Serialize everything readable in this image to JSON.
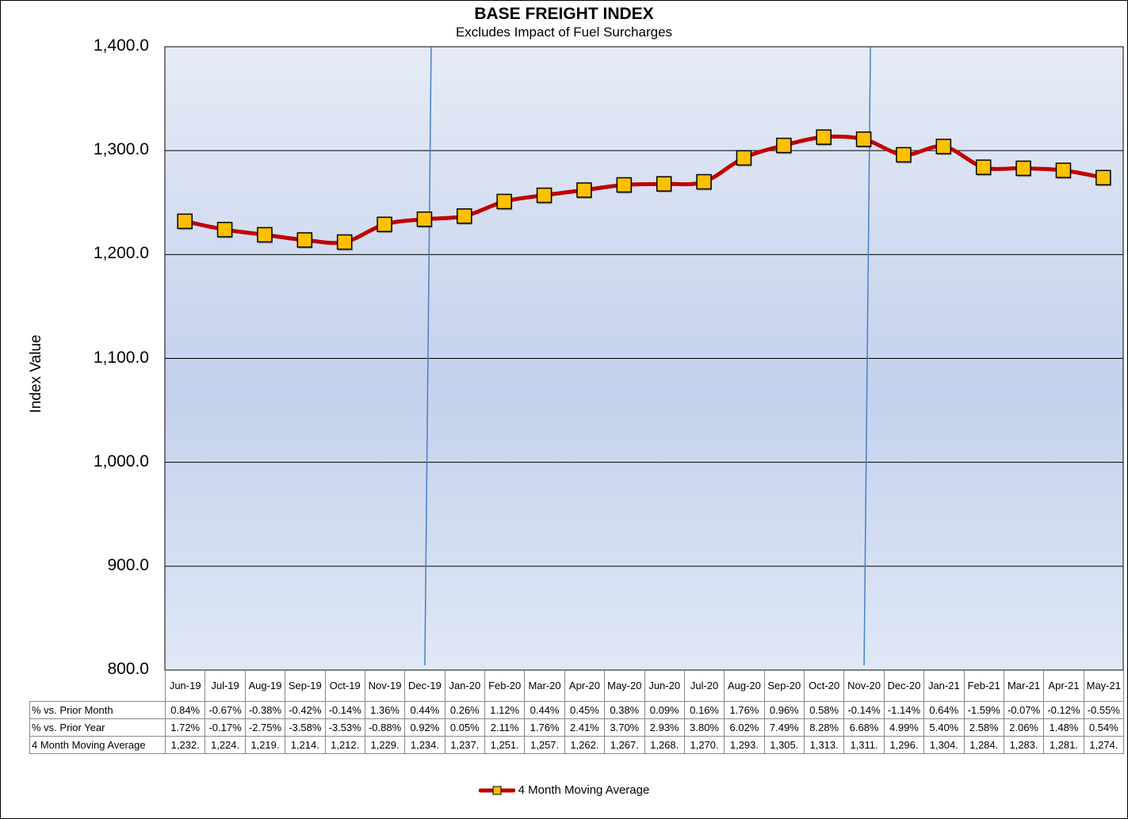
{
  "chart_data": {
    "type": "line",
    "title": "BASE FREIGHT INDEX",
    "subtitle": "Excludes Impact of Fuel Surcharges",
    "ylabel": "Index Value",
    "ylim": [
      800,
      1400
    ],
    "yticks": [
      "1,400.0",
      "1,300.0",
      "1,200.0",
      "1,100.0",
      "1,000.0",
      "900.0",
      "800.0"
    ],
    "ytick_values": [
      1400,
      1300,
      1200,
      1100,
      1000,
      900,
      800
    ],
    "grid": true,
    "legend_position": "bottom",
    "categories": [
      "Jun-19",
      "Jul-19",
      "Aug-19",
      "Sep-19",
      "Oct-19",
      "Nov-19",
      "Dec-19",
      "Jan-20",
      "Feb-20",
      "Mar-20",
      "Apr-20",
      "May-20",
      "Jun-20",
      "Jul-20",
      "Aug-20",
      "Sep-20",
      "Oct-20",
      "Nov-20",
      "Dec-20",
      "Jan-21",
      "Feb-21",
      "Mar-21",
      "Apr-21",
      "May-21"
    ],
    "series": [
      {
        "name": "4 Month Moving Average",
        "color": "#c00000",
        "marker_color": "#ffc000",
        "values": [
          1232,
          1224,
          1219,
          1214,
          1212,
          1229,
          1234,
          1237,
          1251,
          1257,
          1262,
          1267,
          1268,
          1270,
          1293,
          1305,
          1313,
          1311,
          1296,
          1304,
          1284,
          1283,
          1281,
          1274
        ]
      }
    ],
    "year_dividers": [
      "Dec-19",
      "Nov-20"
    ],
    "table": {
      "rows": [
        {
          "label": "% vs. Prior Month",
          "cells": [
            "0.84%",
            "-0.67%",
            "-0.38%",
            "-0.42%",
            "-0.14%",
            "1.36%",
            "0.44%",
            "0.26%",
            "1.12%",
            "0.44%",
            "0.45%",
            "0.38%",
            "0.09%",
            "0.16%",
            "1.76%",
            "0.96%",
            "0.58%",
            "-0.14%",
            "-1.14%",
            "0.64%",
            "-1.59%",
            "-0.07%",
            "-0.12%",
            "-0.55%"
          ]
        },
        {
          "label": "% vs. Prior Year",
          "cells": [
            "1.72%",
            "-0.17%",
            "-2.75%",
            "-3.58%",
            "-3.53%",
            "-0.88%",
            "0.92%",
            "0.05%",
            "2.11%",
            "1.76%",
            "2.41%",
            "3.70%",
            "2.93%",
            "3.80%",
            "6.02%",
            "7.49%",
            "8.28%",
            "6.68%",
            "4.99%",
            "5.40%",
            "2.58%",
            "2.06%",
            "1.48%",
            "0.54%"
          ]
        },
        {
          "label": "4 Month Moving Average",
          "cells": [
            "1,232.",
            "1,224.",
            "1,219.",
            "1,214.",
            "1,212.",
            "1,229.",
            "1,234.",
            "1,237.",
            "1,251.",
            "1,257.",
            "1,262.",
            "1,267.",
            "1,268.",
            "1,270.",
            "1,293.",
            "1,305.",
            "1,313.",
            "1,311.",
            "1,296.",
            "1,304.",
            "1,284.",
            "1,283.",
            "1,281.",
            "1,274."
          ]
        }
      ]
    }
  }
}
